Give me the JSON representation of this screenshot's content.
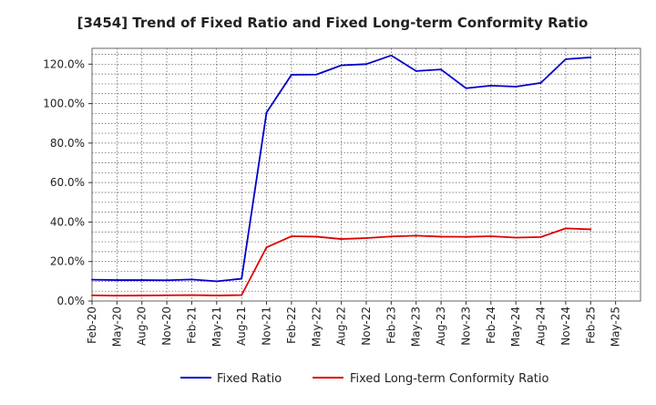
{
  "chart_data": {
    "type": "line",
    "title": "[3454]  Trend of Fixed Ratio and Fixed Long-term Conformity Ratio",
    "xlabel": "",
    "ylabel": "",
    "ylim": [
      0,
      128
    ],
    "y_ticks": [
      0,
      20,
      40,
      60,
      80,
      100,
      120
    ],
    "y_tick_labels": [
      "0.0%",
      "20.0%",
      "40.0%",
      "60.0%",
      "80.0%",
      "100.0%",
      "120.0%"
    ],
    "grid": true,
    "legend_position": "bottom",
    "categories": [
      "Feb-20",
      "May-20",
      "Aug-20",
      "Nov-20",
      "Feb-21",
      "May-21",
      "Aug-21",
      "Nov-21",
      "Feb-22",
      "May-22",
      "Aug-22",
      "Nov-22",
      "Feb-23",
      "May-23",
      "Aug-23",
      "Nov-23",
      "Feb-24",
      "May-24",
      "Aug-24",
      "Nov-24",
      "Feb-25",
      "May-25"
    ],
    "series": [
      {
        "name": "Fixed Ratio",
        "color": "#0000cc",
        "values": [
          10.8,
          10.6,
          10.6,
          10.5,
          10.9,
          10.0,
          11.3,
          95.5,
          114.6,
          114.7,
          119.4,
          120.0,
          124.4,
          116.5,
          117.3,
          107.8,
          109.1,
          108.6,
          110.5,
          122.5,
          123.4,
          null
        ]
      },
      {
        "name": "Fixed Long-term Conformity Ratio",
        "color": "#dd0000",
        "values": [
          2.9,
          2.7,
          2.8,
          2.9,
          3.0,
          2.8,
          3.0,
          27.2,
          32.8,
          32.6,
          31.4,
          31.9,
          32.7,
          33.1,
          32.6,
          32.5,
          32.8,
          32.1,
          32.4,
          36.8,
          36.3,
          null
        ]
      }
    ]
  }
}
